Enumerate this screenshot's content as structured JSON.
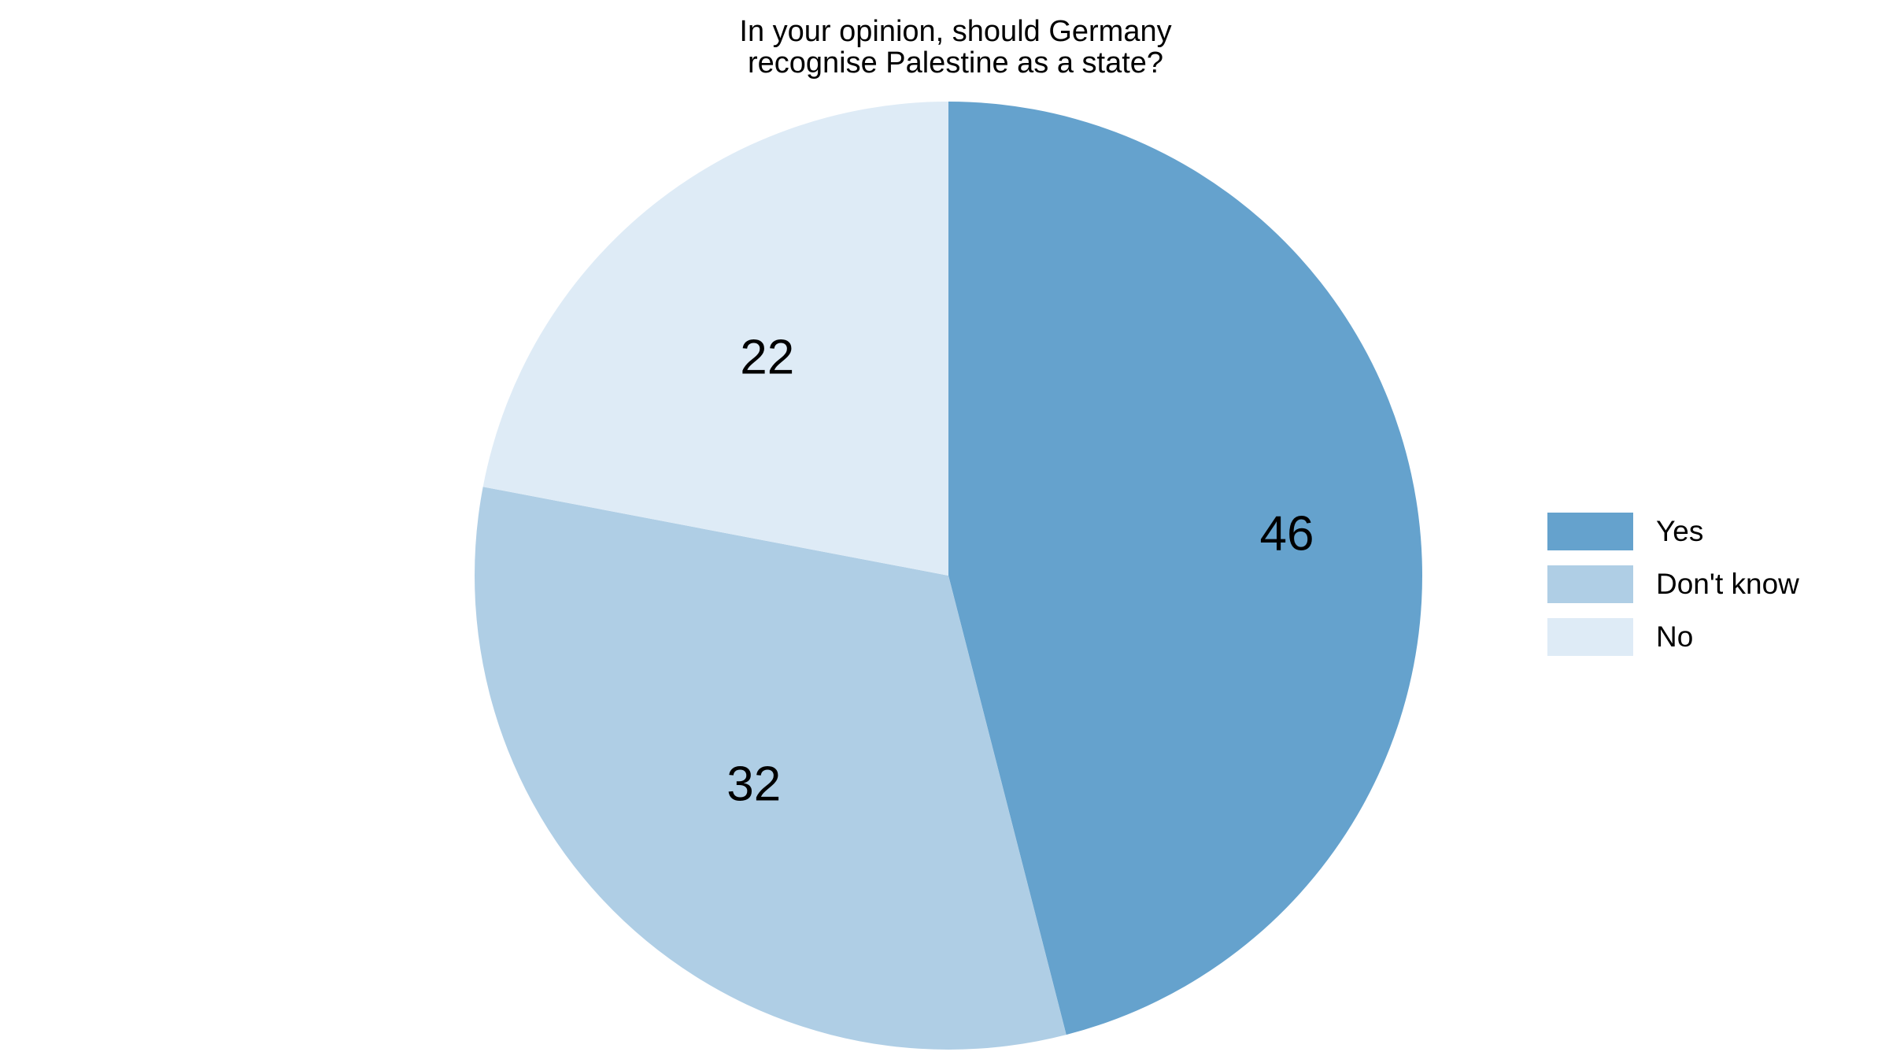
{
  "chart_data": {
    "type": "pie",
    "title": "In your opinion, should Germany recognise Palestine as a state?",
    "title_lines": [
      "In your opinion, should Germany",
      "recognise Palestine as a state?"
    ],
    "categories": [
      "Yes",
      "Don't know",
      "No"
    ],
    "values": [
      46,
      32,
      22
    ],
    "colors": [
      "#65a2cd",
      "#afcee5",
      "#deebf6"
    ],
    "data_labels": [
      "46",
      "32",
      "22"
    ],
    "start_angle_deg": 0,
    "direction": "clockwise",
    "legend_position": "right"
  },
  "legend": {
    "items": [
      {
        "label": "Yes",
        "color": "#65a2cd"
      },
      {
        "label": "Don't know",
        "color": "#afcee5"
      },
      {
        "label": "No",
        "color": "#deebf6"
      }
    ]
  }
}
